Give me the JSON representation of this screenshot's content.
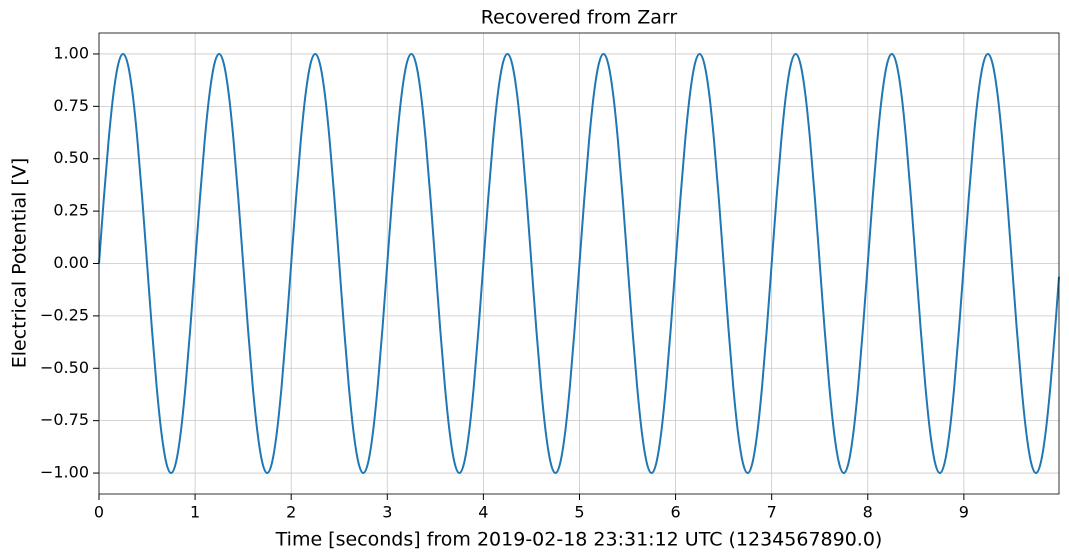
{
  "chart_data": {
    "type": "line",
    "title": "Recovered from Zarr",
    "xlabel": "Time [seconds] from 2019-02-18 23:31:12 UTC (1234567890.0)",
    "ylabel": "Electrical Potential [V]",
    "xlim": [
      0,
      9.99
    ],
    "ylim": [
      -1.1,
      1.1
    ],
    "xticks": [
      0,
      1,
      2,
      3,
      4,
      5,
      6,
      7,
      8,
      9
    ],
    "yticks": [
      {
        "value": 1,
        "label": "1.00"
      },
      {
        "value": 0.75,
        "label": "0.75"
      },
      {
        "value": 0.5,
        "label": "0.50"
      },
      {
        "value": 0.25,
        "label": "0.25"
      },
      {
        "value": 0,
        "label": "0.00"
      },
      {
        "value": -0.25,
        "label": "−0.25"
      },
      {
        "value": -0.5,
        "label": "−0.50"
      },
      {
        "value": -0.75,
        "label": "−0.75"
      },
      {
        "value": -1,
        "label": "−1.00"
      }
    ],
    "grid": true,
    "series": [
      {
        "color": "#1f77b4",
        "x": [
          0,
          0.05,
          0.1,
          0.15,
          0.2,
          0.25,
          0.3,
          0.35,
          0.4,
          0.45,
          0.5,
          0.55,
          0.6,
          0.65,
          0.7,
          0.75,
          0.8,
          0.85,
          0.9,
          0.95,
          1,
          1.05,
          1.1,
          1.15,
          1.2,
          1.25,
          1.3,
          1.35,
          1.4,
          1.45,
          1.5,
          1.55,
          1.6,
          1.65,
          1.7,
          1.75,
          1.8,
          1.85,
          1.9,
          1.95,
          2,
          2.05,
          2.1,
          2.15,
          2.2,
          2.25,
          2.3,
          2.35,
          2.4,
          2.45,
          2.5,
          2.55,
          2.6,
          2.65,
          2.7,
          2.75,
          2.8,
          2.85,
          2.9,
          2.95,
          3,
          3.05,
          3.1,
          3.15,
          3.2,
          3.25,
          3.3,
          3.35,
          3.4,
          3.45,
          3.5,
          3.55,
          3.6,
          3.65,
          3.7,
          3.75,
          3.8,
          3.85,
          3.9,
          3.95,
          4,
          4.05,
          4.1,
          4.15,
          4.2,
          4.25,
          4.3,
          4.35,
          4.4,
          4.45,
          4.5,
          4.55,
          4.6,
          4.65,
          4.7,
          4.75,
          4.8,
          4.85,
          4.9,
          4.95,
          5,
          5.05,
          5.1,
          5.15,
          5.2,
          5.25,
          5.3,
          5.35,
          5.4,
          5.45,
          5.5,
          5.55,
          5.6,
          5.65,
          5.7,
          5.75,
          5.8,
          5.85,
          5.9,
          5.95,
          6,
          6.05,
          6.1,
          6.15,
          6.2,
          6.25,
          6.3,
          6.35,
          6.4,
          6.45,
          6.5,
          6.55,
          6.6,
          6.65,
          6.7,
          6.75,
          6.8,
          6.85,
          6.9,
          6.95,
          7,
          7.05,
          7.1,
          7.15,
          7.2,
          7.25,
          7.3,
          7.35,
          7.4,
          7.45,
          7.5,
          7.55,
          7.6,
          7.65,
          7.7,
          7.75,
          7.8,
          7.85,
          7.9,
          7.95,
          8,
          8.05,
          8.1,
          8.15,
          8.2,
          8.25,
          8.3,
          8.35,
          8.4,
          8.45,
          8.5,
          8.55,
          8.6,
          8.65,
          8.7,
          8.75,
          8.8,
          8.85,
          8.9,
          8.95,
          9,
          9.05,
          9.1,
          9.15,
          9.2,
          9.25,
          9.3,
          9.35,
          9.4,
          9.45,
          9.5,
          9.55,
          9.6,
          9.65,
          9.7,
          9.75,
          9.8,
          9.85,
          9.9,
          9.95,
          9.99
        ],
        "values": [
          0,
          0.309,
          0.588,
          0.809,
          0.951,
          1,
          0.951,
          0.809,
          0.588,
          0.309,
          0,
          -0.309,
          -0.588,
          -0.809,
          -0.951,
          -1,
          -0.951,
          -0.809,
          -0.588,
          -0.309,
          0,
          0.309,
          0.588,
          0.809,
          0.951,
          1,
          0.951,
          0.809,
          0.588,
          0.309,
          0,
          -0.309,
          -0.588,
          -0.809,
          -0.951,
          -1,
          -0.951,
          -0.809,
          -0.588,
          -0.309,
          0,
          0.309,
          0.588,
          0.809,
          0.951,
          1,
          0.951,
          0.809,
          0.588,
          0.309,
          0,
          -0.309,
          -0.588,
          -0.809,
          -0.951,
          -1,
          -0.951,
          -0.809,
          -0.588,
          -0.309,
          0,
          0.309,
          0.588,
          0.809,
          0.951,
          1,
          0.951,
          0.809,
          0.588,
          0.309,
          0,
          -0.309,
          -0.588,
          -0.809,
          -0.951,
          -1,
          -0.951,
          -0.809,
          -0.588,
          -0.309,
          0,
          0.309,
          0.588,
          0.809,
          0.951,
          1,
          0.951,
          0.809,
          0.588,
          0.309,
          0,
          -0.309,
          -0.588,
          -0.809,
          -0.951,
          -1,
          -0.951,
          -0.809,
          -0.588,
          -0.309,
          0,
          0.309,
          0.588,
          0.809,
          0.951,
          1,
          0.951,
          0.809,
          0.588,
          0.309,
          0,
          -0.309,
          -0.588,
          -0.809,
          -0.951,
          -1,
          -0.951,
          -0.809,
          -0.588,
          -0.309,
          0,
          0.309,
          0.588,
          0.809,
          0.951,
          1,
          0.951,
          0.809,
          0.588,
          0.309,
          0,
          -0.309,
          -0.588,
          -0.809,
          -0.951,
          -1,
          -0.951,
          -0.809,
          -0.588,
          -0.309,
          0,
          0.309,
          0.588,
          0.809,
          0.951,
          1,
          0.951,
          0.809,
          0.588,
          0.309,
          0,
          -0.309,
          -0.588,
          -0.809,
          -0.951,
          -1,
          -0.951,
          -0.809,
          -0.588,
          -0.309,
          0,
          0.309,
          0.588,
          0.809,
          0.951,
          1,
          0.951,
          0.809,
          0.588,
          0.309,
          0,
          -0.309,
          -0.588,
          -0.809,
          -0.951,
          -1,
          -0.951,
          -0.809,
          -0.588,
          -0.309,
          0,
          0.309,
          0.588,
          0.809,
          0.951,
          1,
          0.951,
          0.809,
          0.588,
          0.309,
          0,
          -0.309,
          -0.588,
          -0.809,
          -0.951,
          -1,
          -0.951,
          -0.809,
          -0.588,
          -0.309,
          -0.063
        ]
      }
    ]
  }
}
